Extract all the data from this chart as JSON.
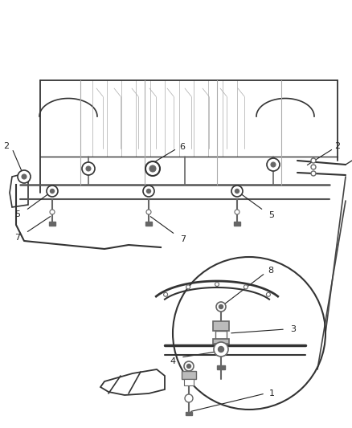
{
  "title": "",
  "background_color": "#ffffff",
  "figsize": [
    4.38,
    5.33
  ],
  "dpi": 100,
  "part_numbers": [
    "1",
    "2",
    "3",
    "4",
    "5",
    "6",
    "7",
    "8"
  ],
  "annotation_color": "#222222",
  "line_color": "#333333",
  "component_color": "#555555",
  "light_gray": "#aaaaaa",
  "dark_gray": "#666666"
}
